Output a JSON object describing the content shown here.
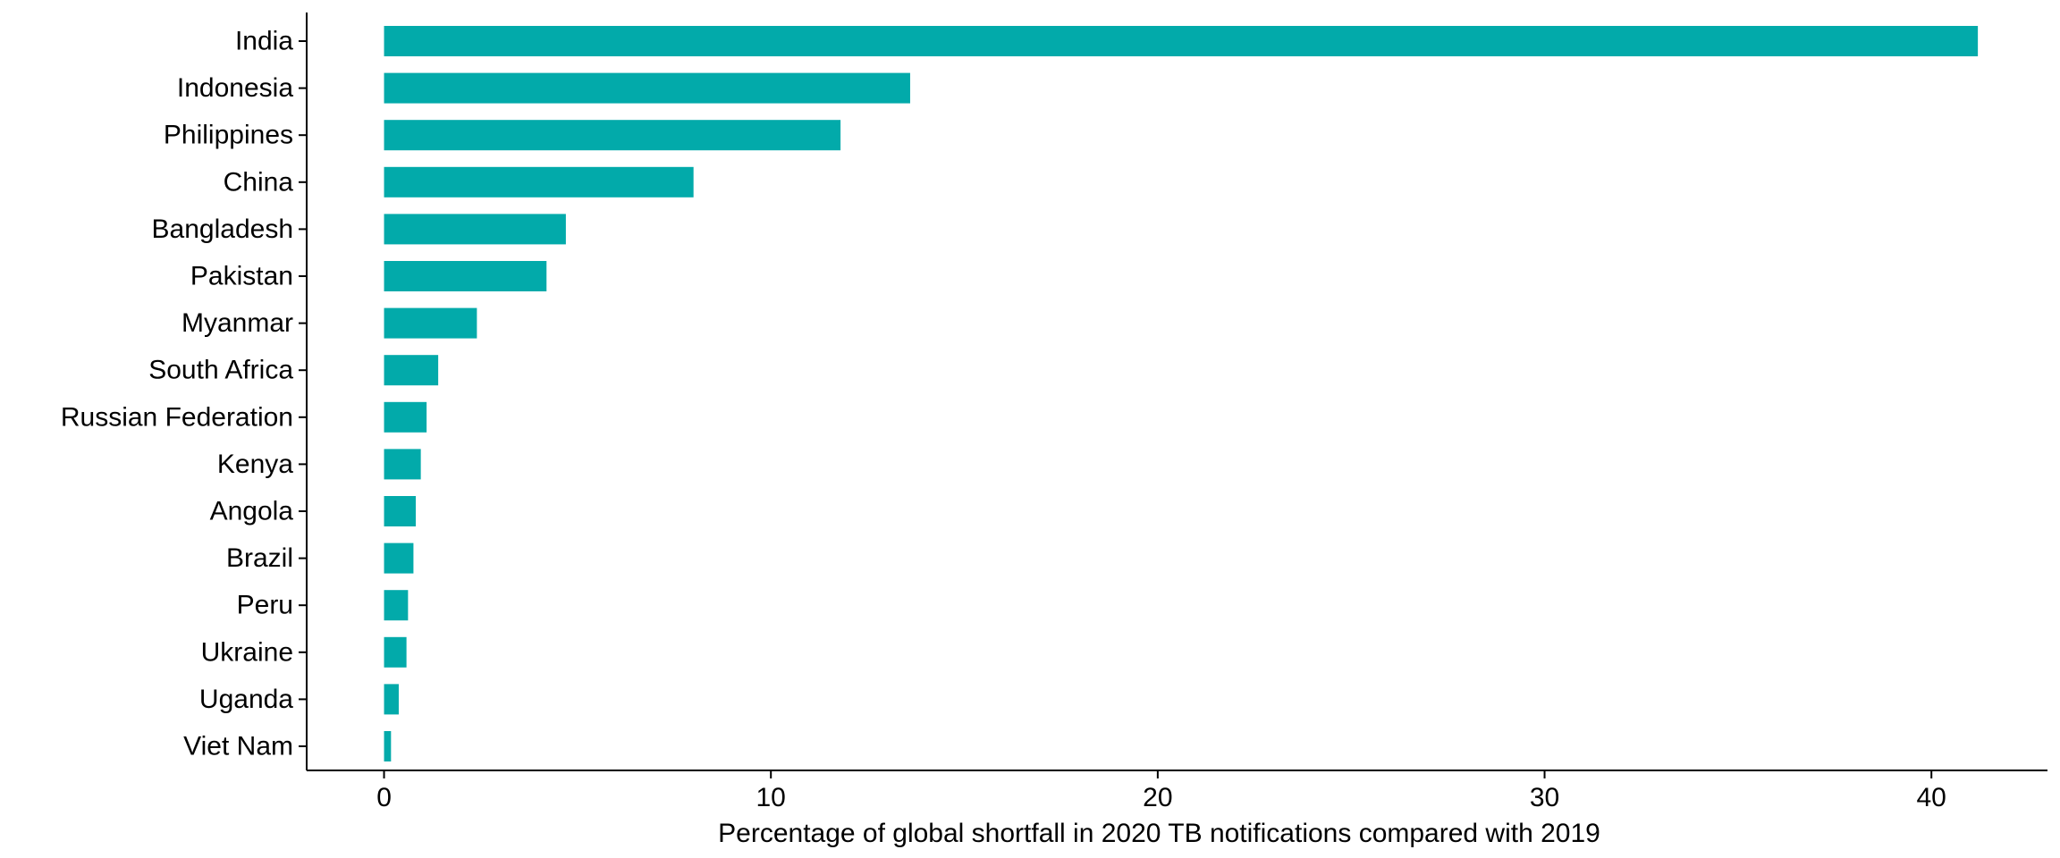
{
  "chart_data": {
    "type": "bar",
    "orientation": "horizontal",
    "categories": [
      "India",
      "Indonesia",
      "Philippines",
      "China",
      "Bangladesh",
      "Pakistan",
      "Myanmar",
      "South Africa",
      "Russian Federation",
      "Kenya",
      "Angola",
      "Brazil",
      "Peru",
      "Ukraine",
      "Uganda",
      "Viet Nam"
    ],
    "values": [
      41.2,
      13.6,
      11.8,
      8.0,
      4.7,
      4.2,
      2.4,
      1.4,
      1.1,
      0.95,
      0.82,
      0.76,
      0.62,
      0.58,
      0.38,
      0.18
    ],
    "title": "",
    "xlabel": "Percentage of global shortfall in 2020 TB notifications compared with 2019",
    "ylabel": "",
    "xlim": [
      -2,
      43
    ],
    "xticks": [
      0,
      10,
      20,
      30,
      40
    ],
    "xtick_labels": [
      "0",
      "10",
      "20",
      "30",
      "40"
    ],
    "grid": false,
    "legend": "none",
    "bar_color": "#02AAAA"
  }
}
